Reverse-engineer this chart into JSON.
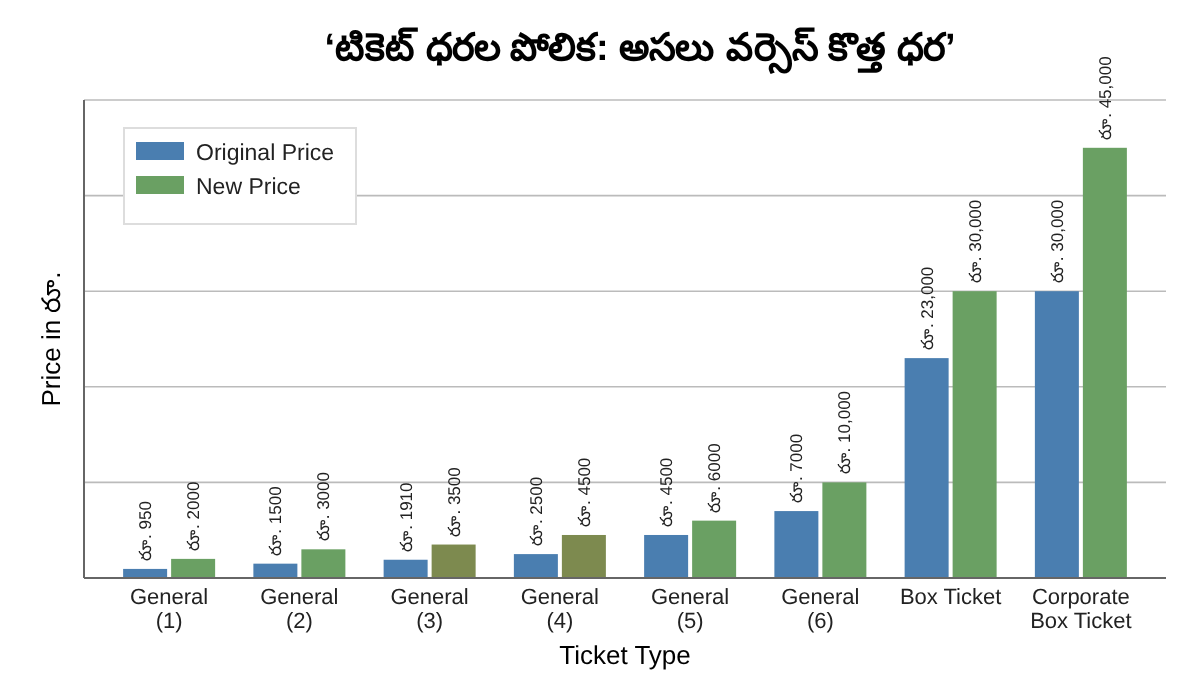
{
  "chart_data": {
    "type": "bar",
    "title": "‘టికెట్ ధరల పోలిక: అసలు వర్సెస్ కొత్త ధర’",
    "xlabel": "Ticket Type",
    "ylabel": "Price in రూ.",
    "categories": [
      "General\n(1)",
      "General\n(2)",
      "General\n(3)",
      "General\n(4)",
      "General\n(5)",
      "General\n(6)",
      "Box Ticket",
      "Corporate\nBox Ticket"
    ],
    "series": [
      {
        "name": "Original Price",
        "color": "#4a7eb0",
        "values": [
          950,
          1500,
          1910,
          2500,
          4500,
          7000,
          23000,
          30000
        ],
        "value_labels": [
          "రూ. 950",
          "రూ. 1500",
          "రూ. 1910",
          "రూ. 2500",
          "రూ. 4500",
          "రూ. 7000",
          "రూ. 23,000",
          "రూ. 30,000"
        ]
      },
      {
        "name": "New Price",
        "color": "#6aa063",
        "colors": [
          "#6aa063",
          "#6aa063",
          "#7d8a4f",
          "#7d8a4f",
          "#6aa063",
          "#6aa063",
          "#6aa063",
          "#6aa063"
        ],
        "values": [
          2000,
          3000,
          3500,
          4500,
          6000,
          10000,
          30000,
          45000
        ],
        "value_labels": [
          "రూ. 2000",
          "రూ. 3000",
          "రూ. 3500",
          "రూ. 4500",
          "రూ. 6000",
          "రూ. 10,000",
          "రూ. 30,000",
          "రూ. 45,000"
        ]
      }
    ],
    "ylim": [
      0,
      50000
    ],
    "yticks": [
      {
        "value": 10000,
        "label": null
      },
      {
        "value": 20000,
        "label": null
      },
      {
        "value": 30000,
        "label": null
      },
      {
        "value": 40000,
        "label": null
      },
      {
        "value": 50000,
        "label": null
      }
    ],
    "grid": "y",
    "legend": "top left",
    "tick_labels": "x"
  }
}
